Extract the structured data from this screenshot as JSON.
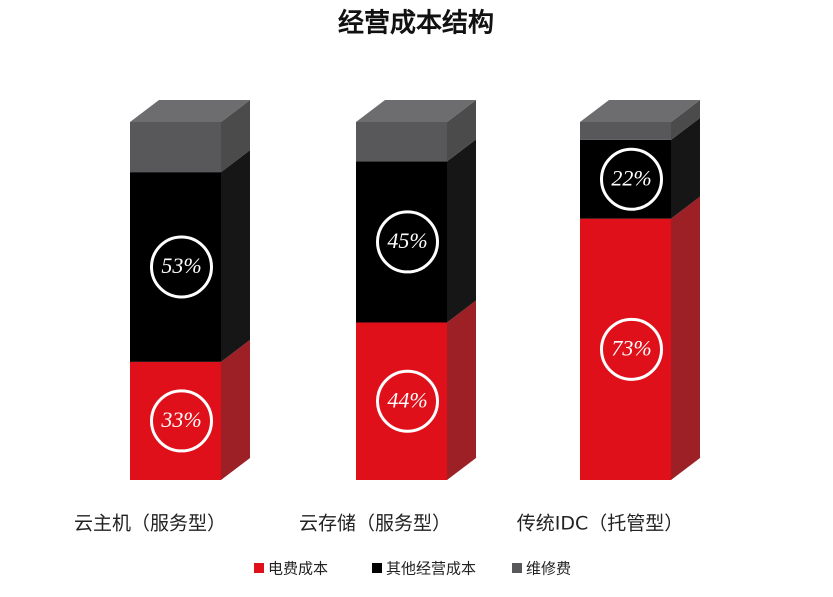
{
  "chart_data": {
    "type": "stacked-bar-3d",
    "title": "经营成本结构",
    "categories": [
      "云主机（服务型）",
      "云存储（服务型）",
      "传统IDC（托管型）"
    ],
    "series": [
      {
        "name": "电费成本",
        "color": "#e0101a",
        "values": [
          33,
          44,
          73
        ],
        "value_labels": [
          "33%",
          "44%",
          "73%"
        ]
      },
      {
        "name": "其他经营成本",
        "color": "#000000",
        "values": [
          53,
          45,
          22
        ],
        "value_labels": [
          "53%",
          "45%",
          "22%"
        ]
      },
      {
        "name": "维修费",
        "color": "#58585a",
        "values": [
          14,
          11,
          5
        ]
      }
    ],
    "legend": "bottom"
  }
}
